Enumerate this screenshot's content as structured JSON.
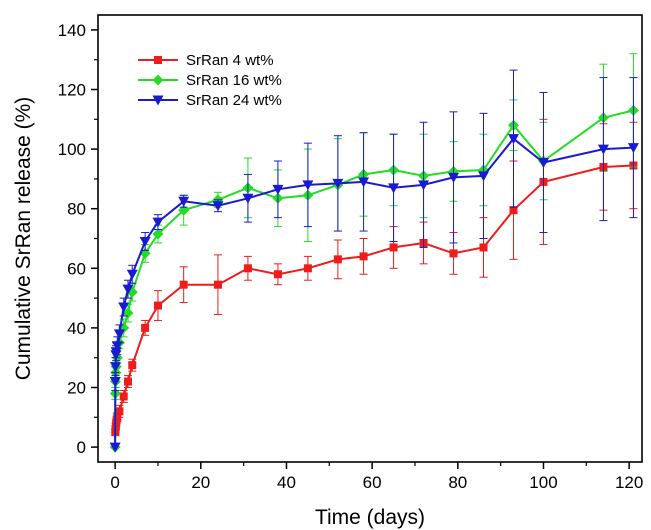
{
  "chart_data": {
    "type": "line",
    "xlabel": "Time (days)",
    "ylabel": "Cumulative SrRan release (%)",
    "xlim": [
      -4,
      123
    ],
    "ylim": [
      -5,
      145
    ],
    "xticks": [
      0,
      20,
      40,
      60,
      80,
      100,
      120
    ],
    "yticks": [
      0,
      20,
      40,
      60,
      80,
      100,
      120,
      140
    ],
    "xtick_labels": [
      "0",
      "20",
      "40",
      "60",
      "80",
      "100",
      "120"
    ],
    "ytick_labels": [
      "0",
      "20",
      "40",
      "60",
      "80",
      "100",
      "120",
      "140"
    ],
    "grid": false,
    "error_bars": true,
    "legend_position": "top-left",
    "series": [
      {
        "name": "SrRan 4 wt%",
        "color": "#ee1c1c",
        "marker": "square",
        "x": [
          0.04,
          0.08,
          0.17,
          0.25,
          0.33,
          0.5,
          1,
          2,
          3,
          4,
          7,
          10,
          16,
          24,
          31,
          38,
          45,
          52,
          58,
          65,
          72,
          79,
          86,
          93,
          100,
          114,
          121
        ],
        "y": [
          5,
          6,
          7,
          8,
          9,
          10,
          12,
          17,
          22,
          27.5,
          40,
          47.5,
          54.5,
          54.5,
          60,
          58,
          60,
          63,
          64,
          67,
          68.5,
          65,
          67,
          79.5,
          89,
          94,
          94.5
        ],
        "err": [
          1,
          1,
          1,
          1,
          1,
          1.5,
          2,
          2,
          2,
          2,
          2.5,
          5,
          6,
          10,
          4,
          3.5,
          4,
          6.5,
          6,
          7,
          7,
          7,
          10,
          16.5,
          21,
          14.5,
          14.5
        ]
      },
      {
        "name": "SrRan 16 wt%",
        "color": "#22dd22",
        "marker": "diamond",
        "x": [
          0,
          0.04,
          0.08,
          0.17,
          0.25,
          0.5,
          1,
          2,
          3,
          4,
          7,
          10,
          16,
          24,
          31,
          38,
          45,
          52,
          58,
          65,
          72,
          79,
          86,
          93,
          100,
          114,
          121
        ],
        "y": [
          0,
          18,
          22,
          25,
          27,
          30,
          35,
          40,
          45,
          52,
          65,
          71.5,
          79.5,
          83,
          87,
          83.5,
          84.5,
          88,
          91.5,
          93,
          91,
          92.5,
          93,
          108,
          96,
          110.5,
          113
        ],
        "err": [
          0,
          2,
          2,
          2,
          2,
          2,
          2,
          3,
          3,
          3,
          3,
          3,
          5,
          2.5,
          10,
          9.5,
          15.5,
          15.5,
          14,
          12,
          14,
          10,
          12,
          8.5,
          13,
          18,
          19
        ]
      },
      {
        "name": "SrRan 24 wt%",
        "color": "#1a1ad0",
        "marker": "triangle-down",
        "x": [
          0,
          0.04,
          0.08,
          0.17,
          0.25,
          0.5,
          1,
          2,
          3,
          4,
          7,
          10,
          16,
          24,
          31,
          38,
          45,
          52,
          58,
          65,
          72,
          79,
          86,
          93,
          100,
          114,
          121
        ],
        "y": [
          0,
          22,
          27,
          31,
          32,
          34,
          38,
          47,
          53,
          58,
          69,
          75.5,
          82.5,
          81,
          83.5,
          86.5,
          88,
          88.5,
          89,
          87,
          88,
          90.5,
          91,
          103.5,
          95.5,
          100,
          100.5
        ],
        "err": [
          0,
          3,
          3,
          3,
          3,
          3,
          3,
          3,
          3,
          3,
          3,
          2.5,
          2,
          2,
          8,
          9.5,
          14,
          16,
          16.5,
          18,
          21,
          22,
          21,
          23,
          23.5,
          24,
          23.5
        ]
      }
    ]
  }
}
